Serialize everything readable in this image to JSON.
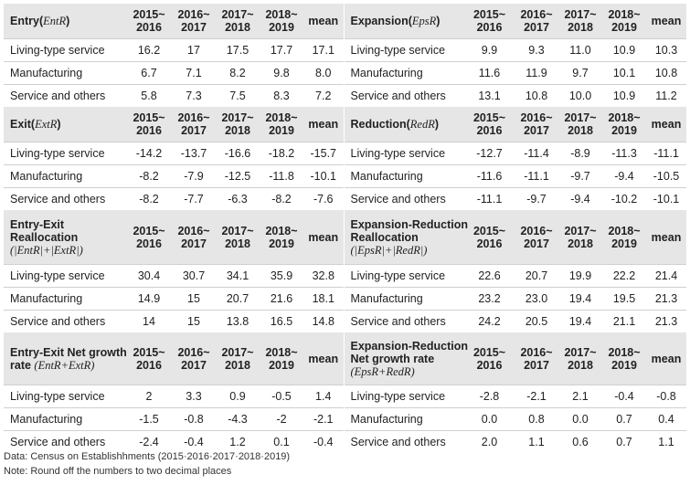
{
  "blocks": [
    {
      "left": {
        "title": "Entry(",
        "formula": "EntR",
        "close": ")",
        "rows": [
          {
            "name": "Living-type service",
            "v": [
              "16.2",
              "17",
              "17.5",
              "17.7",
              "17.1"
            ]
          },
          {
            "name": "Manufacturing",
            "v": [
              "6.7",
              "7.1",
              "8.2",
              "9.8",
              "8.0"
            ]
          },
          {
            "name": "Service and others",
            "v": [
              "5.8",
              "7.3",
              "7.5",
              "8.3",
              "7.2"
            ]
          }
        ]
      },
      "right": {
        "title": "Expansion(",
        "formula": "EpsR",
        "close": ")",
        "rows": [
          {
            "name": "Living-type service",
            "v": [
              "9.9",
              "9.3",
              "11.0",
              "10.9",
              "10.3"
            ]
          },
          {
            "name": "Manufacturing",
            "v": [
              "11.6",
              "11.9",
              "9.7",
              "10.1",
              "10.8"
            ]
          },
          {
            "name": "Service and others",
            "v": [
              "13.1",
              "10.8",
              "10.0",
              "10.9",
              "11.2"
            ]
          }
        ]
      }
    },
    {
      "left": {
        "title": "Exit(",
        "formula": "ExtR",
        "close": ")",
        "rows": [
          {
            "name": "Living-type service",
            "v": [
              "-14.2",
              "-13.7",
              "-16.6",
              "-18.2",
              "-15.7"
            ]
          },
          {
            "name": "Manufacturing",
            "v": [
              "-8.2",
              "-7.9",
              "-12.5",
              "-11.8",
              "-10.1"
            ]
          },
          {
            "name": "Service and others",
            "v": [
              "-8.2",
              "-7.7",
              "-6.3",
              "-8.2",
              "-7.6"
            ]
          }
        ]
      },
      "right": {
        "title": "Reduction(",
        "formula": "RedR",
        "close": ")",
        "rows": [
          {
            "name": "Living-type service",
            "v": [
              "-12.7",
              "-11.4",
              "-8.9",
              "-11.3",
              "-11.1"
            ]
          },
          {
            "name": "Manufacturing",
            "v": [
              "-11.6",
              "-11.1",
              "-9.7",
              "-9.4",
              "-10.5"
            ]
          },
          {
            "name": "Service and others",
            "v": [
              "-11.1",
              "-9.7",
              "-9.4",
              "-10.2",
              "-10.1"
            ]
          }
        ]
      }
    },
    {
      "left": {
        "title": "Entry-Exit",
        "title2": "Reallocation",
        "formula": "(|EntR|+|ExtR|)",
        "rows": [
          {
            "name": "Living-type service",
            "v": [
              "30.4",
              "30.7",
              "34.1",
              "35.9",
              "32.8"
            ]
          },
          {
            "name": "Manufacturing",
            "v": [
              "14.9",
              "15",
              "20.7",
              "21.6",
              "18.1"
            ]
          },
          {
            "name": "Service and others",
            "v": [
              "14",
              "15",
              "13.8",
              "16.5",
              "14.8"
            ]
          }
        ]
      },
      "right": {
        "title": "Expansion-Reduction",
        "title2": "Reallocation",
        "formula": "(|EpsR|+|RedR|)",
        "rows": [
          {
            "name": "Living-type service",
            "v": [
              "22.6",
              "20.7",
              "19.9",
              "22.2",
              "21.4"
            ]
          },
          {
            "name": "Manufacturing",
            "v": [
              "23.2",
              "23.0",
              "19.4",
              "19.5",
              "21.3"
            ]
          },
          {
            "name": "Service and others",
            "v": [
              "24.2",
              "20.5",
              "19.4",
              "21.1",
              "21.3"
            ]
          }
        ]
      }
    },
    {
      "left": {
        "title": "Entry-Exit Net growth",
        "title2": "rate ",
        "formula": "(EntR+ExtR)",
        "rows": [
          {
            "name": "Living-type service",
            "v": [
              "2",
              "3.3",
              "0.9",
              "-0.5",
              "1.4"
            ]
          },
          {
            "name": "Manufacturing",
            "v": [
              "-1.5",
              "-0.8",
              "-4.3",
              "-2",
              "-2.1"
            ]
          },
          {
            "name": "Service and others",
            "v": [
              "-2.4",
              "-0.4",
              "1.2",
              "0.1",
              "-0.4"
            ]
          }
        ]
      },
      "right": {
        "title": "Expansion-Reduction",
        "title2": "Net growth rate",
        "formula": "(EpsR+RedR)",
        "rows": [
          {
            "name": "Living-type service",
            "v": [
              "-2.8",
              "-2.1",
              "2.1",
              "-0.4",
              "-0.8"
            ]
          },
          {
            "name": "Manufacturing",
            "v": [
              "0.0",
              "0.8",
              "0.0",
              "0.7",
              "0.4"
            ]
          },
          {
            "name": "Service and others",
            "v": [
              "2.0",
              "1.1",
              "0.6",
              "0.7",
              "1.1"
            ]
          }
        ]
      }
    }
  ],
  "periods": [
    {
      "top": "2015~",
      "bottom": "2016"
    },
    {
      "top": "2016~",
      "bottom": "2017"
    },
    {
      "top": "2017~",
      "bottom": "2018"
    },
    {
      "top": "2018~",
      "bottom": "2019"
    }
  ],
  "mean_label": "mean",
  "notes": {
    "source": "Data: Census on Establishhments (2015·2016·2017·2018·2019)",
    "note": "Note: Round off the numbers to two decimal places"
  }
}
